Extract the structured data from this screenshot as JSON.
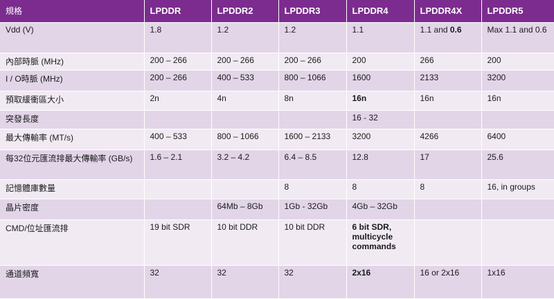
{
  "table": {
    "headers": [
      "規格",
      "LPDDR",
      "LPDDR2",
      "LPDDR3",
      "LPDDR4",
      "LPDDR4X",
      "LPDDR5"
    ],
    "rows": [
      {
        "label": "Vdd (V)",
        "cells": [
          "1.8",
          "1.2",
          "1.2",
          "1.1",
          "1.1 and ",
          "Max 1.1 and 0.6"
        ],
        "emph": "0.6"
      },
      {
        "label": "內部時脈 (MHz)",
        "cells": [
          "200 – 266",
          "200 – 266",
          "200 – 266",
          "200",
          "266",
          "200"
        ]
      },
      {
        "label": "I / O時脈 (MHz)",
        "cells": [
          "200 – 266",
          "400 – 533",
          "800 – 1066",
          "1600",
          "2133",
          "3200"
        ]
      },
      {
        "label": "預取緩衝區大小",
        "cells": [
          "2n",
          "4n",
          "8n",
          "16n",
          "16n",
          "16n"
        ]
      },
      {
        "label": "突發長度",
        "cells": [
          "",
          "",
          "",
          "16 - 32",
          "",
          ""
        ]
      },
      {
        "label": "最大傳輸率 (MT/s)",
        "cells": [
          "400 – 533",
          "800 – 1066",
          "1600 – 2133",
          "3200",
          "4266",
          "6400"
        ]
      },
      {
        "label": "每32位元匯流排最大傳輸率 (GB/s)",
        "cells": [
          "1.6 – 2.1",
          "3.2 – 4.2",
          "6.4 – 8.5",
          "12.8",
          "17",
          "25.6"
        ]
      },
      {
        "label": "記憶體庫數量",
        "cells": [
          "",
          "",
          "8",
          "8",
          "8",
          "16, in groups"
        ]
      },
      {
        "label": "晶片密度",
        "cells": [
          "",
          "64Mb – 8Gb",
          "1Gb - 32Gb",
          "4Gb – 32Gb",
          "",
          ""
        ]
      },
      {
        "label": "CMD/位址匯流排",
        "cells": [
          "19 bit SDR",
          "10 bit DDR",
          "10 bit DDR",
          "6 bit SDR, multicycle commands",
          "",
          ""
        ]
      },
      {
        "label": "通道頻寬",
        "cells": [
          "32",
          "32",
          "32",
          "2x16",
          "16 or 2x16",
          "1x16"
        ]
      }
    ]
  }
}
